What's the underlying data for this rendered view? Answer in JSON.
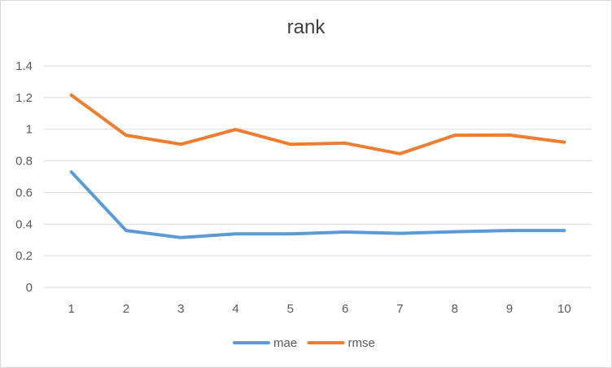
{
  "chart_data": {
    "type": "line",
    "title": "rank",
    "xlabel": "",
    "ylabel": "",
    "x": [
      1,
      2,
      3,
      4,
      5,
      6,
      7,
      8,
      9,
      10
    ],
    "x_tick_labels": [
      "1",
      "2",
      "3",
      "4",
      "5",
      "6",
      "7",
      "8",
      "9",
      "10"
    ],
    "ylim": [
      0,
      1.4
    ],
    "y_ticks": [
      0,
      0.2,
      0.4,
      0.6,
      0.8,
      1,
      1.2,
      1.4
    ],
    "y_tick_labels": [
      "0",
      "0.2",
      "0.4",
      "0.6",
      "0.8",
      "1",
      "1.2",
      "1.4"
    ],
    "grid": "horizontal",
    "legend_position": "bottom",
    "series": [
      {
        "name": "mae",
        "color": "#5b9bd5",
        "values": [
          0.73,
          0.36,
          0.315,
          0.338,
          0.338,
          0.35,
          0.342,
          0.352,
          0.36,
          0.36
        ]
      },
      {
        "name": "rmse",
        "color": "#ed7d31",
        "values": [
          1.215,
          0.962,
          0.905,
          0.998,
          0.905,
          0.912,
          0.845,
          0.962,
          0.963,
          0.918
        ]
      }
    ]
  }
}
